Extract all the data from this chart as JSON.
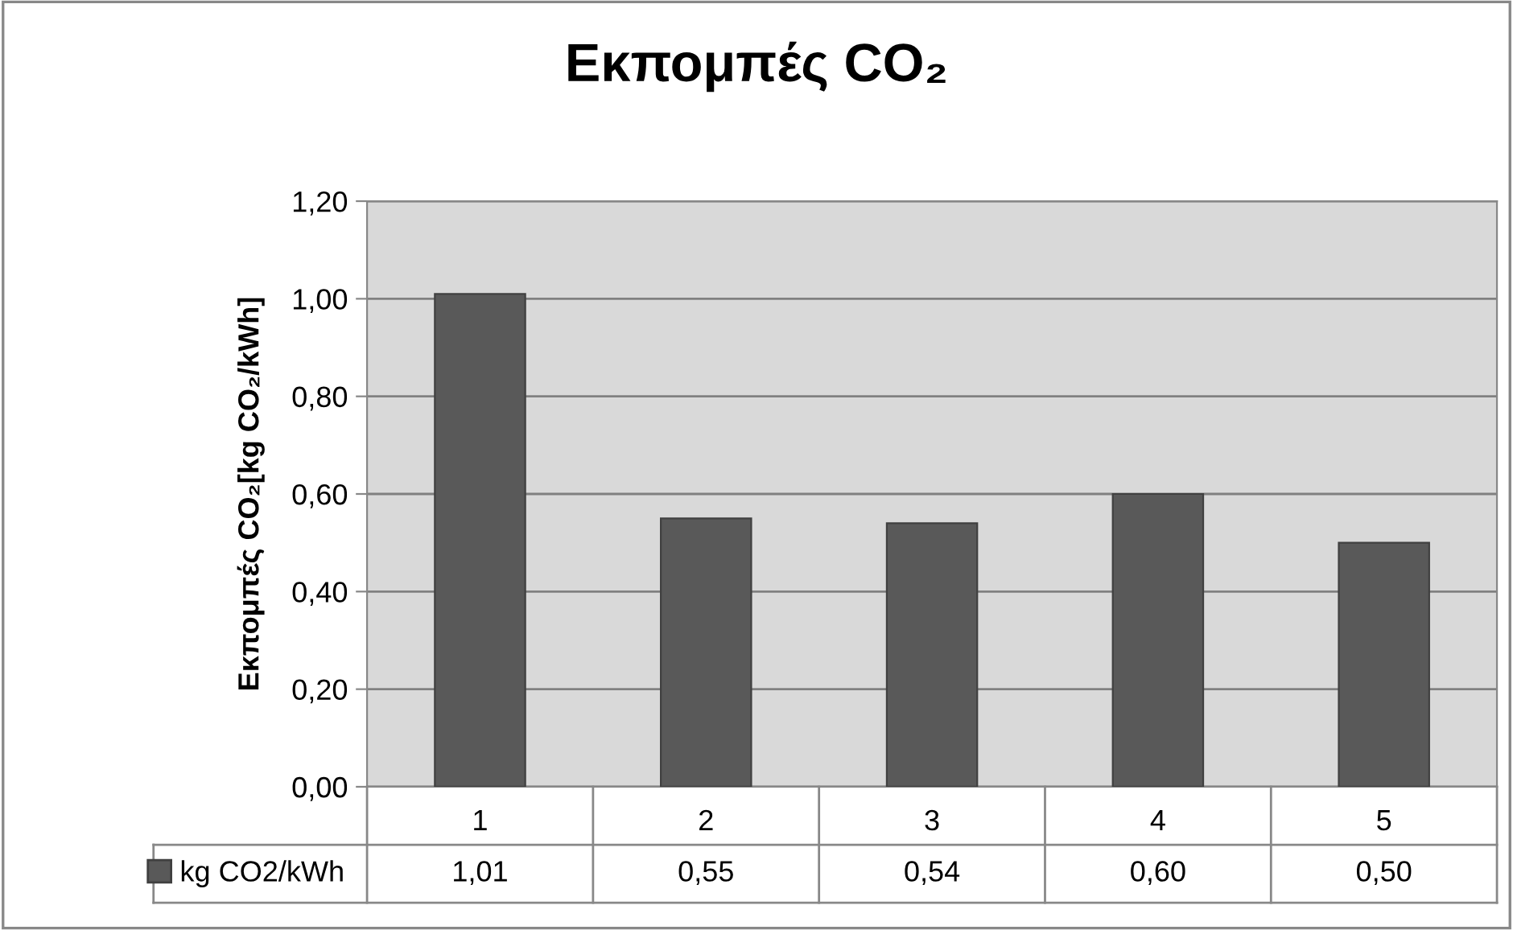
{
  "chart_data": {
    "type": "bar",
    "title": "Εκπομπές CO₂",
    "ylabel": "Εκπομπές CO₂[kg CO₂/kWh]",
    "categories": [
      "1",
      "2",
      "3",
      "4",
      "5"
    ],
    "series": [
      {
        "name": "kg CO2/kWh",
        "color": "#595959",
        "values": [
          1.01,
          0.55,
          0.54,
          0.6,
          0.5
        ]
      }
    ],
    "ylim": [
      0,
      1.2
    ],
    "yticks": [
      {
        "value": 0,
        "label": "0,00"
      },
      {
        "value": 0.2,
        "label": "0,20"
      },
      {
        "value": 0.4,
        "label": "0,40"
      },
      {
        "value": 0.6,
        "label": "0,60"
      },
      {
        "value": 0.8,
        "label": "0,80"
      },
      {
        "value": 1.0,
        "label": "1,00"
      },
      {
        "value": 1.2,
        "label": "1,20"
      }
    ],
    "value_labels": [
      "1,01",
      "0,55",
      "0,54",
      "0,60",
      "0,50"
    ],
    "grid": "y",
    "legend": "bottom"
  }
}
